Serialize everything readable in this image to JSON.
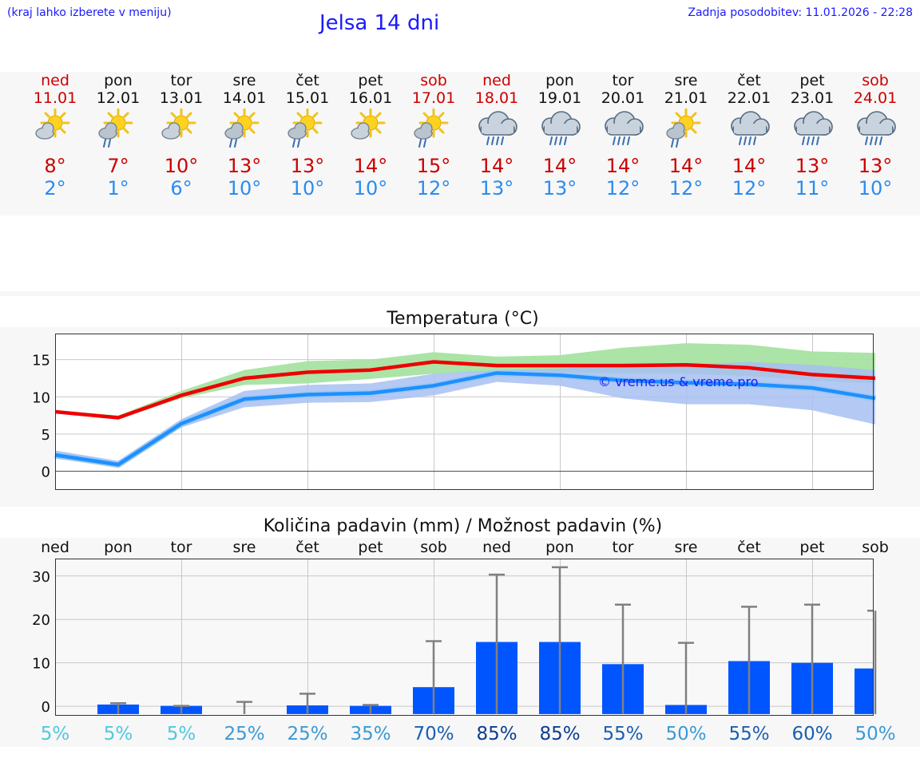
{
  "header": {
    "hint": "(kraj lahko izberete v meniju)",
    "title": "Jelsa 14 dni",
    "updated": "Zadnja posodobitev: 11.01.2026 - 22:28"
  },
  "days": [
    {
      "name": "ned",
      "date": "11.01",
      "weekend": true,
      "icon": "sun-cloud-icon",
      "max": "8°",
      "min": "2°"
    },
    {
      "name": "pon",
      "date": "12.01",
      "weekend": false,
      "icon": "sun-cloud-rain-icon",
      "max": "7°",
      "min": "1°"
    },
    {
      "name": "tor",
      "date": "13.01",
      "weekend": false,
      "icon": "sun-cloud-icon",
      "max": "10°",
      "min": "6°"
    },
    {
      "name": "sre",
      "date": "14.01",
      "weekend": false,
      "icon": "sun-cloud-rain-icon",
      "max": "13°",
      "min": "10°"
    },
    {
      "name": "čet",
      "date": "15.01",
      "weekend": false,
      "icon": "sun-cloud-rain-icon",
      "max": "13°",
      "min": "10°"
    },
    {
      "name": "pet",
      "date": "16.01",
      "weekend": false,
      "icon": "sun-cloud-icon",
      "max": "14°",
      "min": "10°"
    },
    {
      "name": "sob",
      "date": "17.01",
      "weekend": true,
      "icon": "sun-cloud-rain-icon",
      "max": "15°",
      "min": "12°"
    },
    {
      "name": "ned",
      "date": "18.01",
      "weekend": true,
      "icon": "rain-cloud-icon",
      "max": "14°",
      "min": "13°"
    },
    {
      "name": "pon",
      "date": "19.01",
      "weekend": false,
      "icon": "rain-cloud-icon",
      "max": "14°",
      "min": "13°"
    },
    {
      "name": "tor",
      "date": "20.01",
      "weekend": false,
      "icon": "rain-cloud-icon",
      "max": "14°",
      "min": "12°"
    },
    {
      "name": "sre",
      "date": "21.01",
      "weekend": false,
      "icon": "sun-cloud-rain-icon",
      "max": "14°",
      "min": "12°"
    },
    {
      "name": "čet",
      "date": "22.01",
      "weekend": false,
      "icon": "rain-cloud-icon",
      "max": "14°",
      "min": "12°"
    },
    {
      "name": "pet",
      "date": "23.01",
      "weekend": false,
      "icon": "rain-cloud-icon",
      "max": "13°",
      "min": "11°"
    },
    {
      "name": "sob",
      "date": "24.01",
      "weekend": true,
      "icon": "rain-cloud-icon",
      "max": "13°",
      "min": "10°"
    }
  ],
  "colors": {
    "max": "#ee0000",
    "min": "#1e90ff",
    "max_band": "#a6e3a1",
    "min_band": "#a7bff2",
    "bar": "#0055ff",
    "whisker": "#808080",
    "grid": "#c8c8c8"
  },
  "chart_data": [
    {
      "type": "line",
      "title": "Temperatura (°C)",
      "watermark": "© vreme.us & vreme.pro",
      "x": [
        "11.01",
        "12.01",
        "13.01",
        "14.01",
        "15.01",
        "16.01",
        "17.01",
        "18.01",
        "19.01",
        "20.01",
        "21.01",
        "22.01",
        "23.01",
        "24.01"
      ],
      "ylim": [
        -2.5,
        18.5
      ],
      "yticks": [
        0,
        5,
        10,
        15
      ],
      "series": [
        {
          "name": "max",
          "values": [
            8.0,
            7.2,
            10.2,
            12.5,
            13.3,
            13.6,
            14.7,
            14.2,
            14.2,
            14.2,
            14.3,
            13.9,
            13.0,
            12.5
          ],
          "band_low": [
            7.8,
            7.0,
            9.8,
            11.6,
            11.8,
            12.4,
            13.1,
            13.4,
            13.3,
            13.1,
            13.1,
            12.8,
            12.2,
            11.8
          ],
          "band_high": [
            8.2,
            7.5,
            10.8,
            13.6,
            14.8,
            15.0,
            16.0,
            15.4,
            15.6,
            16.6,
            17.2,
            17.0,
            16.1,
            15.9
          ]
        },
        {
          "name": "min",
          "values": [
            2.2,
            0.9,
            6.4,
            9.7,
            10.3,
            10.5,
            11.5,
            13.2,
            12.9,
            12.2,
            11.9,
            11.7,
            11.2,
            9.8
          ],
          "band_low": [
            1.7,
            0.6,
            5.9,
            8.6,
            9.2,
            9.3,
            10.2,
            12.0,
            11.5,
            9.8,
            9.0,
            9.0,
            8.2,
            6.3
          ],
          "band_high": [
            2.8,
            1.4,
            7.0,
            10.8,
            11.6,
            11.8,
            13.1,
            13.6,
            13.8,
            14.4,
            14.3,
            14.7,
            14.3,
            13.6
          ]
        }
      ]
    },
    {
      "type": "bar",
      "title": "Količina padavin (mm) / Možnost padavin (%)",
      "categories": [
        "ned",
        "pon",
        "tor",
        "sre",
        "čet",
        "pet",
        "sob",
        "ned",
        "pon",
        "tor",
        "sre",
        "čet",
        "pet",
        "sob"
      ],
      "values": [
        0.0,
        0.4,
        0.1,
        0.0,
        0.2,
        0.1,
        4.4,
        14.8,
        14.8,
        9.7,
        0.3,
        10.4,
        10.0,
        8.7
      ],
      "error_high": [
        0.0,
        0.7,
        0.1,
        1.0,
        2.9,
        0.3,
        15.0,
        30.3,
        32.0,
        23.4,
        14.6,
        22.9,
        23.4,
        22.0
      ],
      "probability": [
        "5%",
        "5%",
        "5%",
        "25%",
        "25%",
        "35%",
        "70%",
        "85%",
        "85%",
        "55%",
        "50%",
        "55%",
        "60%",
        "50%"
      ],
      "probability_values": [
        5,
        5,
        5,
        25,
        25,
        35,
        70,
        85,
        85,
        55,
        50,
        55,
        60,
        50
      ],
      "ylim": [
        -2,
        34
      ],
      "yticks": [
        0,
        10,
        20,
        30
      ]
    }
  ]
}
